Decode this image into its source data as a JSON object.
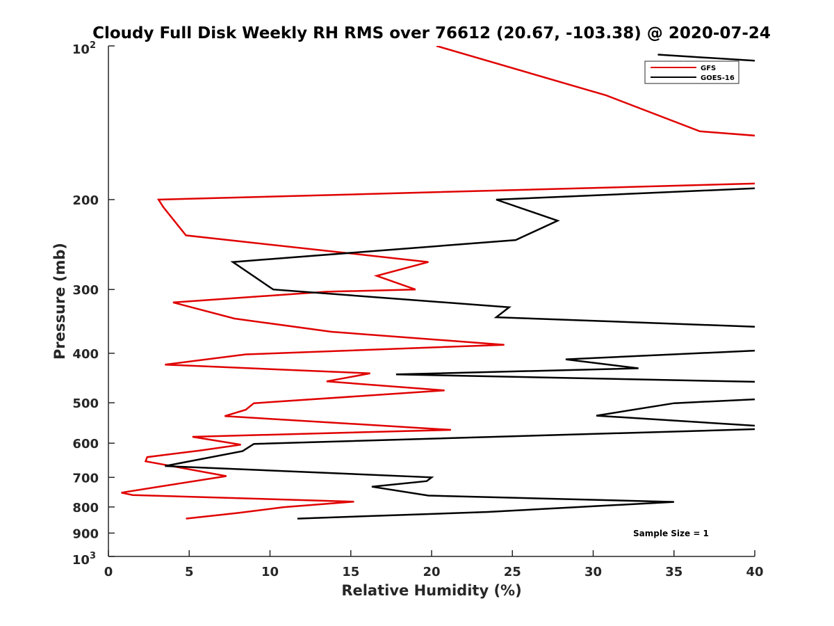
{
  "chart_data": {
    "type": "line",
    "title": "Cloudy Full Disk Weekly RH RMS over 76612 (20.67, -103.38) @ 2020-07-24",
    "xlabel": "Relative Humidity (%)",
    "ylabel": "Pressure (mb)",
    "xlim": [
      0,
      40
    ],
    "ylim": [
      100,
      1000
    ],
    "yscale": "log",
    "yreversed": true,
    "xticks": [
      0,
      5,
      10,
      15,
      20,
      25,
      30,
      35,
      40
    ],
    "xtick_labels": [
      "0",
      "5",
      "10",
      "15",
      "20",
      "25",
      "30",
      "35",
      "40"
    ],
    "yticks": [
      200,
      300,
      400,
      500,
      600,
      700,
      800,
      900
    ],
    "ytick_labels": [
      "200",
      "300",
      "400",
      "500",
      "600",
      "700",
      "800",
      "900"
    ],
    "ytick_top": {
      "base": "10",
      "exp": "2"
    },
    "ytick_bottom": {
      "base": "10",
      "exp": "3"
    },
    "legend_position": "top-right",
    "annotation": "Sample Size = 1",
    "series": [
      {
        "name": "GFS",
        "color": "#e00000",
        "x": [
          20.3,
          30.8,
          36.6,
          40.2,
          null,
          40.2,
          3.1,
          3.4,
          4.8,
          19.8,
          16.6,
          19.0,
          13.5,
          4.0,
          7.8,
          13.8,
          24.5,
          8.5,
          3.5,
          16.2,
          13.5,
          20.8,
          9.0,
          8.5,
          7.2,
          21.2,
          5.2,
          8.2,
          5.7,
          2.4,
          2.3,
          7.3,
          3.5,
          0.8,
          1.5,
          15.2,
          10.8,
          8.0,
          4.8
        ],
        "y": [
          100,
          125,
          147,
          150,
          null,
          186,
          200,
          207,
          235,
          265,
          282,
          300,
          303,
          318,
          342,
          363,
          385,
          402,
          421,
          438,
          454,
          473,
          501,
          516,
          531,
          565,
          583,
          604,
          620,
          639,
          651,
          696,
          727,
          750,
          758,
          781,
          801,
          822,
          843
        ]
      },
      {
        "name": "GOES-16",
        "color": "#000000",
        "x": [
          34.0,
          40.2,
          null,
          40.2,
          24.0,
          27.8,
          25.2,
          7.7,
          10.2,
          24.8,
          24.0,
          40.2,
          null,
          40.2,
          28.3,
          32.8,
          17.8,
          40.2,
          null,
          40.2,
          35.0,
          30.2,
          40.2,
          40.2,
          9.0,
          8.3,
          3.5,
          20.0,
          19.7,
          16.3,
          19.8,
          35.0,
          23.5,
          11.7
        ],
        "y": [
          104,
          107,
          null,
          190,
          200,
          220,
          240,
          265,
          300,
          325,
          340,
          355,
          null,
          395,
          411,
          428,
          440,
          455,
          null,
          492,
          501,
          530,
          555,
          563,
          602,
          622,
          665,
          700,
          712,
          730,
          760,
          782,
          818,
          843
        ]
      }
    ]
  }
}
